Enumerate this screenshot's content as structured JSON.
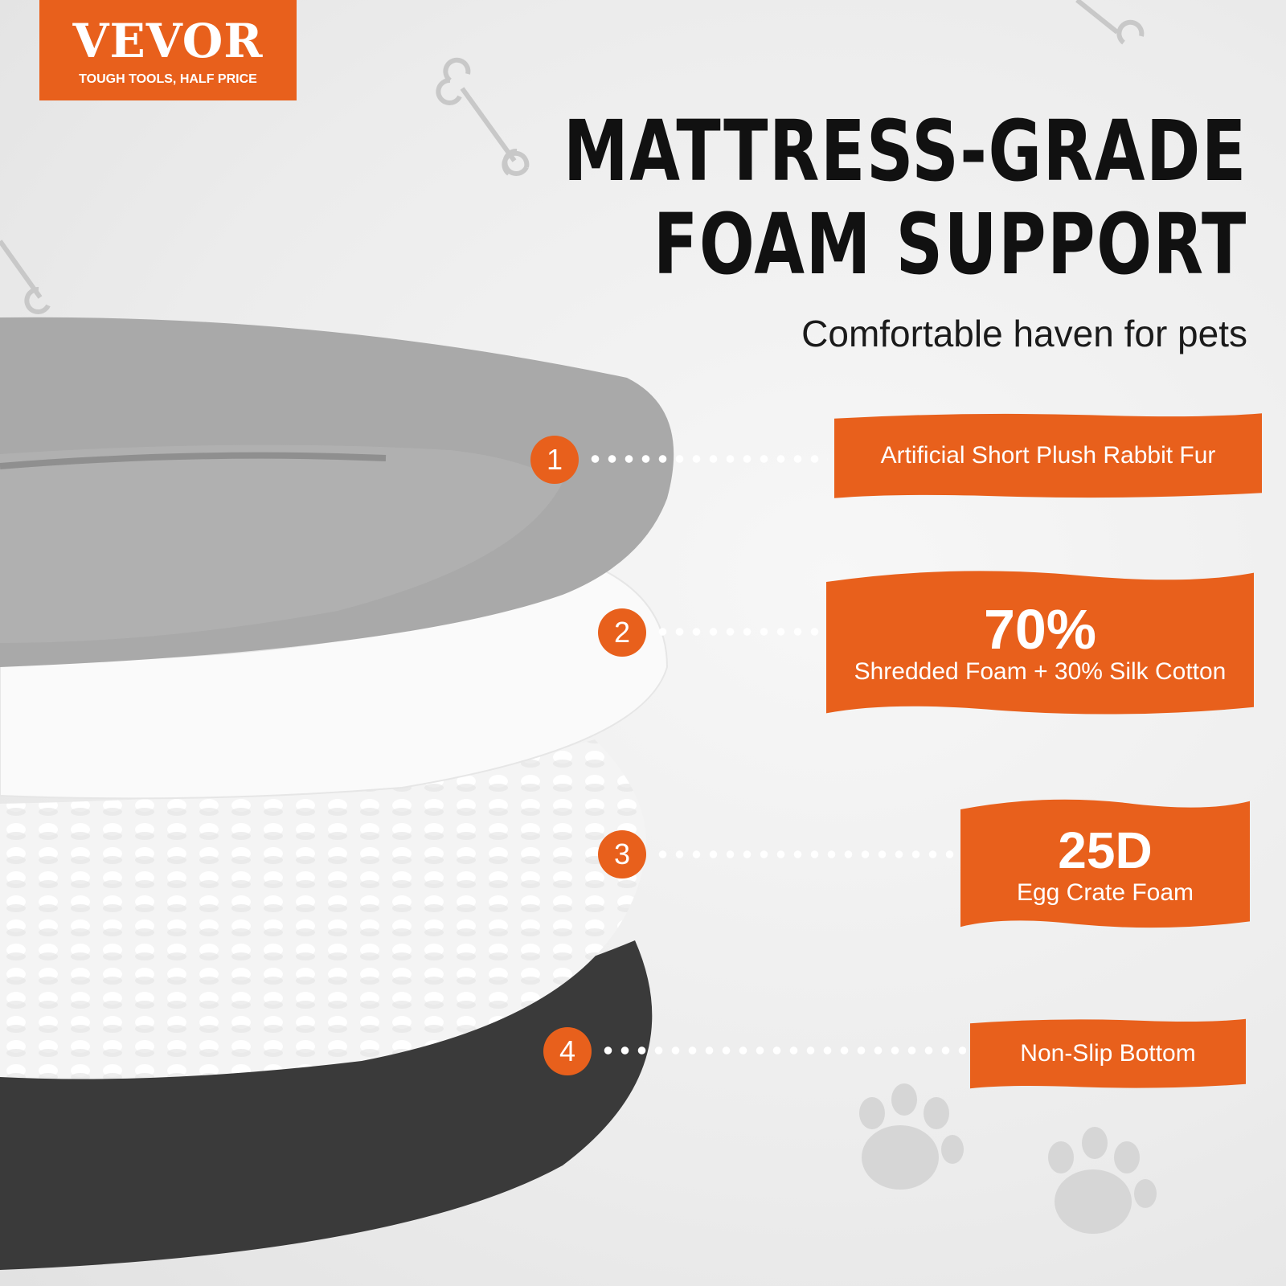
{
  "brand": {
    "name": "VEVOR",
    "tagline": "TOUGH TOOLS, HALF PRICE",
    "color": "#e8601c"
  },
  "headline": {
    "line1": "MATTRESS-GRADE",
    "line2": "FOAM SUPPORT",
    "subtitle": "Comfortable haven for pets"
  },
  "layers": [
    {
      "number": "1",
      "label": "Artificial Short Plush Rabbit Fur"
    },
    {
      "number": "2",
      "highlight": "70%",
      "label": "Shredded Foam + 30% Silk Cotton"
    },
    {
      "number": "3",
      "highlight": "25D",
      "label": "Egg Crate Foam"
    },
    {
      "number": "4",
      "label": "Non-Slip Bottom"
    }
  ],
  "decorations": [
    "bone-icon",
    "paw-icon"
  ]
}
